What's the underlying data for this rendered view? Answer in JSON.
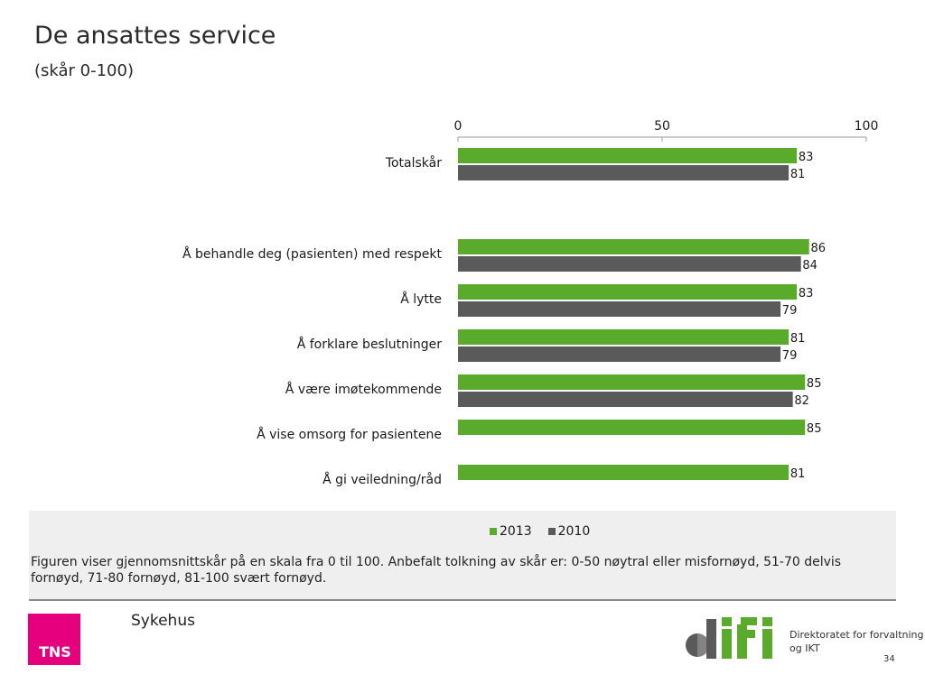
{
  "title": "De ansattes service",
  "subtitle": "(skår 0-100)",
  "chart_data": {
    "type": "bar",
    "orientation": "horizontal",
    "xlim": [
      0,
      100
    ],
    "xticks": [
      0,
      50,
      100
    ],
    "categories": [
      "Totalskår",
      "Å behandle deg (pasienten) med respekt",
      "Å lytte",
      "Å forklare beslutninger",
      "Å være imøtekommende",
      "Å vise omsorg for pasientene",
      "Å gi veiledning/råd"
    ],
    "series": [
      {
        "name": "2013",
        "color": "#5aab2c",
        "values": [
          83,
          86,
          83,
          81,
          85,
          85,
          81
        ]
      },
      {
        "name": "2010",
        "color": "#5a5a5a",
        "values": [
          81,
          84,
          79,
          79,
          82,
          null,
          null
        ]
      }
    ],
    "legend_position": "bottom"
  },
  "note": "Figuren viser gjennomsnittskår på en skala fra 0 til 100. Anbefalt tolkning av skår er: 0-50 nøytral eller misfornøyd, 51-70 delvis fornøyd, 71-80 fornøyd, 81-100 svært fornøyd.",
  "segment": "Sykehus",
  "tns_logo": "TNS",
  "difi_logo": {
    "text": "difi",
    "caption": "Direktoratet for forvaltning og IKT"
  },
  "page_number": "34"
}
